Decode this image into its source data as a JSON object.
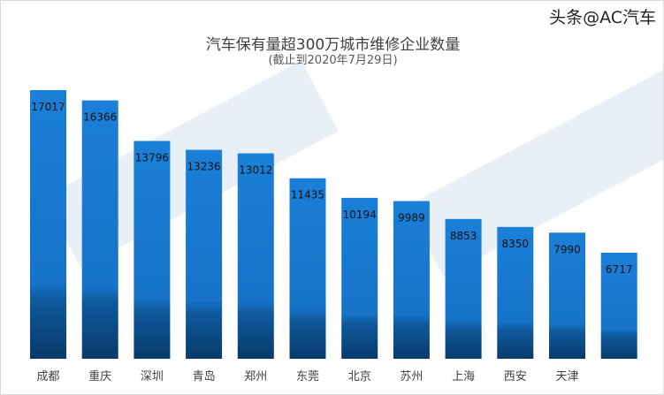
{
  "chart_data": {
    "type": "bar",
    "title": "汽车保有量超300万城市维修企业数量",
    "subtitle": "(截止到2020年7月29日)",
    "categories": [
      "成都",
      "重庆",
      "深圳",
      "青岛",
      "郑州",
      "东莞",
      "北京",
      "苏州",
      "上海",
      "西安",
      "天津",
      ""
    ],
    "values": [
      17017,
      16366,
      13796,
      13236,
      13012,
      11435,
      10194,
      9989,
      8853,
      8350,
      7990,
      6717
    ],
    "ylim": [
      0,
      17017
    ],
    "grid": false,
    "colors": {
      "bar": "#1b7fd8",
      "bar_dark": "#0a3f73"
    }
  },
  "watermark": "AC汽车",
  "credit": "头条@AC汽车"
}
